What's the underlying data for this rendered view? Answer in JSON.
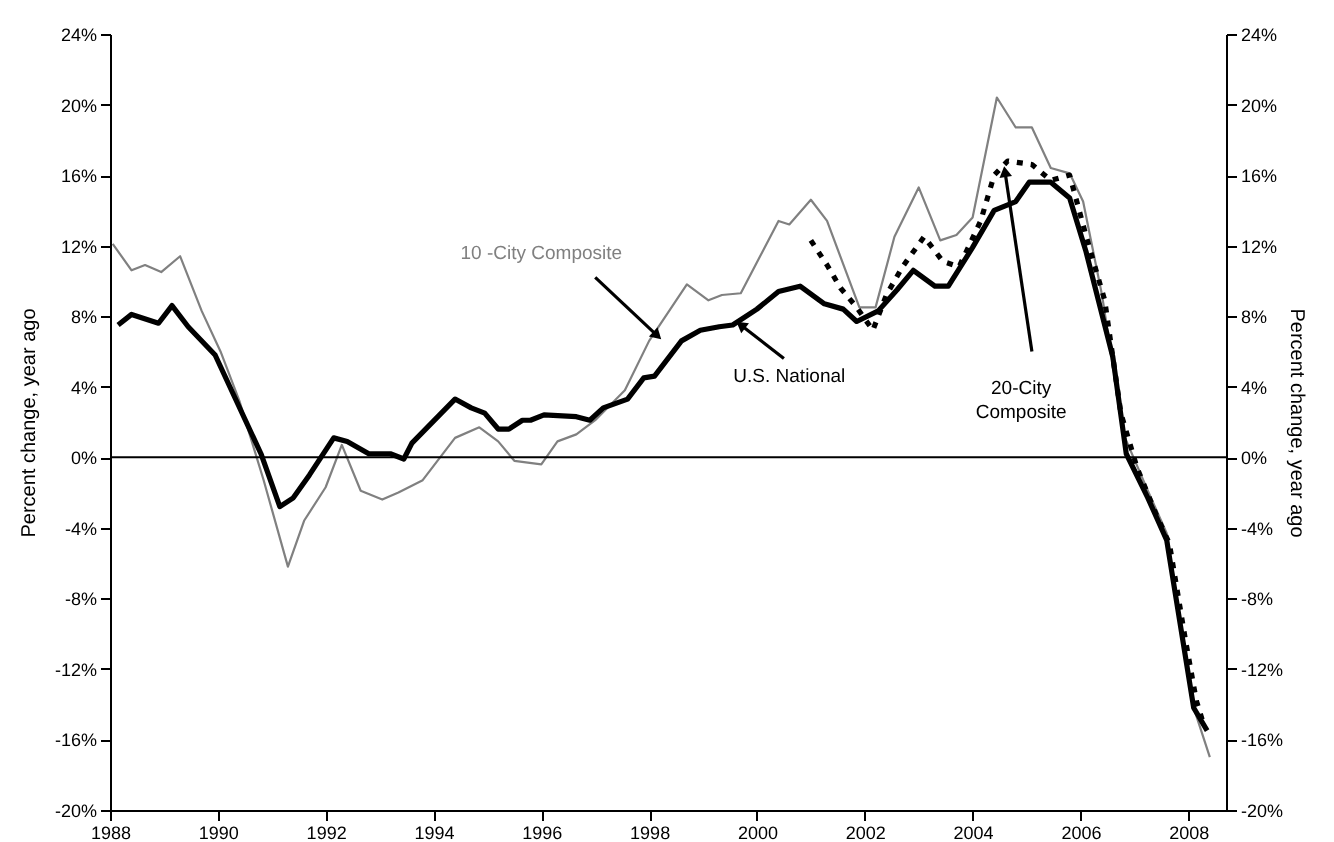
{
  "chart_data": {
    "type": "line",
    "ylabel": "Percent change, year ago",
    "y2label": "Percent change, year ago",
    "xlim": [
      1988,
      2008.7
    ],
    "xticks": [
      1988,
      1990,
      1992,
      1994,
      1996,
      1998,
      2000,
      2002,
      2004,
      2006,
      2008
    ],
    "ylim": [
      -20,
      24
    ],
    "yticks": [
      {
        "value": -20,
        "label": "-20%"
      },
      {
        "value": -16,
        "label": "-16%"
      },
      {
        "value": -12,
        "label": "-12%"
      },
      {
        "value": -8,
        "label": "-8%"
      },
      {
        "value": -4,
        "label": "-4%"
      },
      {
        "value": 0,
        "label": "0%"
      },
      {
        "value": 4,
        "label": "4%"
      },
      {
        "value": 8,
        "label": "8%"
      },
      {
        "value": 12,
        "label": "12%"
      },
      {
        "value": 16,
        "label": "16%"
      },
      {
        "value": 20,
        "label": "20%"
      },
      {
        "value": 24,
        "label": "24%"
      }
    ],
    "y2lim": [
      -20,
      24
    ],
    "y2ticks": [
      {
        "value": -20,
        "label": "-20%"
      },
      {
        "value": -16,
        "label": "-16%"
      },
      {
        "value": -12,
        "label": "-12%"
      },
      {
        "value": -8,
        "label": "-8%"
      },
      {
        "value": -4,
        "label": "-4%"
      },
      {
        "value": 0,
        "label": "0%"
      },
      {
        "value": 4,
        "label": "4%"
      },
      {
        "value": 8,
        "label": "8%"
      },
      {
        "value": 12,
        "label": "12%"
      },
      {
        "value": 16,
        "label": "16%"
      },
      {
        "value": 20,
        "label": "20%"
      },
      {
        "value": 24,
        "label": "24%"
      }
    ],
    "grid": false,
    "marker": "none",
    "ref_lines": [
      {
        "axis": "y",
        "value": 0,
        "color": "#000000"
      }
    ],
    "series": [
      {
        "name": "10 -City Composite",
        "color": "#808080",
        "line_style": "solid",
        "x": [
          1988.05,
          1988.4,
          1988.65,
          1988.95,
          1989.3,
          1989.7,
          1990.05,
          1990.4,
          1990.85,
          1991.3,
          1991.6,
          1992,
          1992.3,
          1992.65,
          1993.05,
          1993.35,
          1993.8,
          1994.4,
          1994.85,
          1995.2,
          1995.5,
          1996,
          1996.3,
          1996.65,
          1997,
          1997.55,
          1998,
          1998.7,
          1999.1,
          1999.35,
          1999.7,
          2000.4,
          2000.6,
          2001,
          2001.3,
          2001.9,
          2002.2,
          2002.55,
          2003,
          2003.4,
          2003.7,
          2004,
          2004.45,
          2004.8,
          2005.1,
          2005.45,
          2005.8,
          2006.05,
          2006.4,
          2006.8,
          2007.25,
          2007.6,
          2008.1,
          2008.4
        ],
        "values": [
          12.1,
          10.6,
          10.9,
          10.5,
          11.4,
          8.3,
          6.0,
          3.2,
          -1.3,
          -6.2,
          -3.6,
          -1.7,
          0.7,
          -1.9,
          -2.4,
          -2.0,
          -1.3,
          1.1,
          1.7,
          0.9,
          -0.2,
          -0.4,
          0.9,
          1.3,
          2.1,
          3.8,
          6.6,
          9.8,
          8.9,
          9.2,
          9.3,
          13.4,
          13.2,
          14.6,
          13.4,
          8.5,
          8.5,
          12.5,
          15.3,
          12.3,
          12.6,
          13.6,
          20.4,
          18.7,
          18.7,
          16.4,
          16.1,
          14.5,
          9.2,
          1.3,
          -1.9,
          -4.3,
          -14.2,
          -17.0
        ]
      },
      {
        "name": "U.S. National",
        "color": "#000000",
        "line_style": "solid",
        "x": [
          1988.15,
          1988.4,
          1988.9,
          1989.15,
          1989.45,
          1989.95,
          1990.8,
          1991.15,
          1991.4,
          1991.7,
          1992.15,
          1992.4,
          1992.8,
          1993.2,
          1993.45,
          1993.6,
          1994.4,
          1994.7,
          1994.95,
          1995.2,
          1995.4,
          1995.65,
          1995.8,
          1996.05,
          1996.65,
          1996.9,
          1997.15,
          1997.6,
          1997.9,
          1998.1,
          1998.6,
          1998.95,
          1999.3,
          1999.55,
          2000,
          2000.4,
          2000.8,
          2001.25,
          2001.6,
          2001.85,
          2002.25,
          2002.6,
          2002.9,
          2003.3,
          2003.55,
          2004,
          2004.4,
          2004.8,
          2005.05,
          2005.45,
          2005.8,
          2006.1,
          2006.6,
          2006.85,
          2007.25,
          2007.6,
          2008.1,
          2008.35
        ],
        "values": [
          7.5,
          8.1,
          7.6,
          8.6,
          7.4,
          5.8,
          0.2,
          -2.8,
          -2.3,
          -1.0,
          1.1,
          0.9,
          0.2,
          0.2,
          -0.1,
          0.8,
          3.3,
          2.8,
          2.5,
          1.6,
          1.6,
          2.1,
          2.1,
          2.4,
          2.3,
          2.1,
          2.8,
          3.3,
          4.5,
          4.6,
          6.6,
          7.2,
          7.4,
          7.5,
          8.4,
          9.4,
          9.7,
          8.7,
          8.4,
          7.7,
          8.3,
          9.5,
          10.6,
          9.7,
          9.7,
          11.9,
          14.0,
          14.5,
          15.6,
          15.6,
          14.7,
          11.7,
          5.7,
          0.2,
          -2.3,
          -4.7,
          -14.2,
          -15.5
        ]
      },
      {
        "name": "20-City Composite",
        "color": "#000000",
        "line_style": "dashed",
        "x": [
          2001,
          2001.3,
          2001.55,
          2001.85,
          2002.15,
          2002.4,
          2002.7,
          2003.1,
          2003.45,
          2003.75,
          2004.15,
          2004.4,
          2004.65,
          2005.1,
          2005.45,
          2005.8,
          2006.1,
          2006.45,
          2006.75,
          2007.05,
          2007.4,
          2007.65,
          2007.95,
          2008.15,
          2008.3
        ],
        "values": [
          12.3,
          10.9,
          9.6,
          8.5,
          7.2,
          9.2,
          10.8,
          12.5,
          11.1,
          10.8,
          13.4,
          16.0,
          16.8,
          16.6,
          15.7,
          16.0,
          12.6,
          8.9,
          2.5,
          -0.6,
          -3.2,
          -4.9,
          -10.4,
          -13.8,
          -15.3
        ]
      }
    ]
  }
}
